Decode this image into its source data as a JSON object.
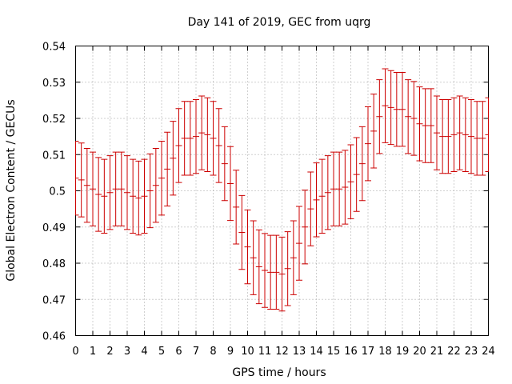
{
  "chart_data": {
    "type": "errorbar",
    "title": "Day 141 of 2019, GEC from uqrg",
    "xlabel": "GPS time / hours",
    "ylabel": "Global Electron Content / GECUs",
    "xlim": [
      0,
      24
    ],
    "ylim": [
      0.46,
      0.54
    ],
    "x_ticks": [
      0,
      1,
      2,
      3,
      4,
      5,
      6,
      7,
      8,
      9,
      10,
      11,
      12,
      13,
      14,
      15,
      16,
      17,
      18,
      19,
      20,
      21,
      22,
      23,
      24
    ],
    "x_tick_labels": [
      "0",
      "1",
      "2",
      "3",
      "4",
      "5",
      "6",
      "7",
      "8",
      "9",
      "10",
      "11",
      "12",
      "13",
      "14",
      "15",
      "16",
      "17",
      "18",
      "19",
      "20",
      "21",
      "22",
      "23",
      "24"
    ],
    "y_ticks": [
      0.46,
      0.47,
      0.48,
      0.49,
      0.5,
      0.51,
      0.52,
      0.53,
      0.54
    ],
    "y_tick_labels": [
      "0.46",
      "0.47",
      "0.48",
      "0.49",
      "0.5",
      "0.51",
      "0.52",
      "0.53",
      "0.54"
    ],
    "grid": true,
    "series": [
      {
        "name": "GEC",
        "color": "#cc0000",
        "error": 0.0102,
        "x": [
          0,
          0.333,
          0.667,
          1,
          1.333,
          1.667,
          2,
          2.333,
          2.667,
          3,
          3.333,
          3.667,
          4,
          4.333,
          4.667,
          5,
          5.333,
          5.667,
          6,
          6.333,
          6.667,
          7,
          7.333,
          7.667,
          8,
          8.333,
          8.667,
          9,
          9.333,
          9.667,
          10,
          10.333,
          10.667,
          11,
          11.333,
          11.667,
          12,
          12.333,
          12.667,
          13,
          13.333,
          13.667,
          14,
          14.333,
          14.667,
          15,
          15.333,
          15.667,
          16,
          16.333,
          16.667,
          17,
          17.333,
          17.667,
          18,
          18.333,
          18.667,
          19,
          19.333,
          19.667,
          20,
          20.333,
          20.667,
          21,
          21.333,
          21.667,
          22,
          22.333,
          22.667,
          23,
          23.333,
          23.667,
          24
        ],
        "values": [
          0.5035,
          0.503,
          0.5015,
          0.5005,
          0.499,
          0.4985,
          0.4995,
          0.5005,
          0.5005,
          0.4995,
          0.4985,
          0.498,
          0.4985,
          0.5,
          0.5015,
          0.5035,
          0.506,
          0.509,
          0.5125,
          0.5145,
          0.5145,
          0.515,
          0.516,
          0.5155,
          0.5145,
          0.5125,
          0.5075,
          0.502,
          0.4955,
          0.4885,
          0.4845,
          0.4815,
          0.479,
          0.478,
          0.4775,
          0.4775,
          0.477,
          0.4785,
          0.4815,
          0.4855,
          0.49,
          0.495,
          0.4975,
          0.4985,
          0.4995,
          0.5005,
          0.5005,
          0.501,
          0.5025,
          0.5045,
          0.5075,
          0.513,
          0.5165,
          0.5205,
          0.5235,
          0.523,
          0.5225,
          0.5225,
          0.5205,
          0.52,
          0.5185,
          0.518,
          0.518,
          0.516,
          0.515,
          0.515,
          0.5155,
          0.516,
          0.5155,
          0.515,
          0.5145,
          0.5145,
          0.5155
        ]
      }
    ]
  }
}
